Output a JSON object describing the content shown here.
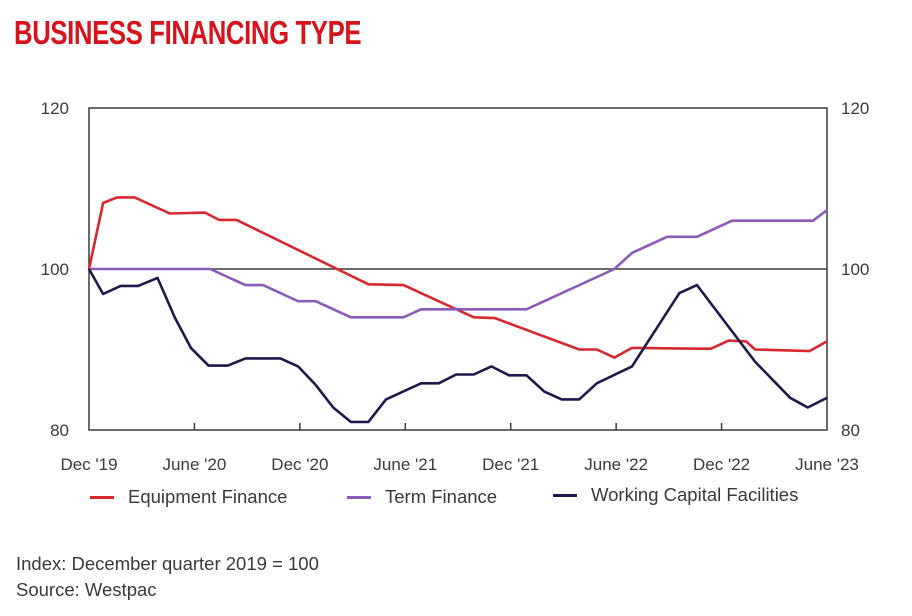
{
  "title": "BUSINESS FINANCING TYPE",
  "footnote": "Index: December quarter 2019 = 100",
  "source": "Source: Westpac",
  "legend": [
    {
      "label": "Equipment Finance",
      "color": "#d7282f"
    },
    {
      "label": "Term Finance",
      "color": "#8a5cb8"
    },
    {
      "label": "Working Capital Facilities",
      "color": "#1c1a4a"
    }
  ],
  "chart_data": {
    "type": "line",
    "title": "BUSINESS FINANCING TYPE",
    "xlabel": "",
    "ylabel": "",
    "ylim": [
      80,
      120
    ],
    "yticks": [
      80,
      100,
      120
    ],
    "reference_line": 100,
    "grid": false,
    "legend_position": "bottom",
    "x_tick_labels": [
      "Dec '19",
      "June '20",
      "Dec '20",
      "June '21",
      "Dec '21",
      "June '22",
      "Dec '22",
      "June '23"
    ],
    "x_range": [
      0,
      42
    ],
    "series": [
      {
        "name": "Equipment Finance",
        "color": "#d7282f",
        "points": [
          [
            0,
            100
          ],
          [
            0.8,
            108.2
          ],
          [
            1.6,
            108.9
          ],
          [
            2.6,
            108.9
          ],
          [
            4.6,
            106.9
          ],
          [
            6.6,
            107
          ],
          [
            7.4,
            106.1
          ],
          [
            8.4,
            106.1
          ],
          [
            15.9,
            98.1
          ],
          [
            17.9,
            98
          ],
          [
            21.9,
            94
          ],
          [
            23.1,
            93.9
          ],
          [
            27.9,
            90
          ],
          [
            28.9,
            90
          ],
          [
            29.9,
            89
          ],
          [
            30.9,
            90.2
          ],
          [
            34.6,
            90.1
          ],
          [
            35.4,
            90.1
          ],
          [
            36.4,
            91.1
          ],
          [
            37.4,
            91
          ],
          [
            37.9,
            90
          ],
          [
            41,
            89.8
          ],
          [
            42,
            91
          ]
        ]
      },
      {
        "name": "Term Finance",
        "color": "#8a5cb8",
        "points": [
          [
            0,
            100
          ],
          [
            6.9,
            100
          ],
          [
            8.9,
            98
          ],
          [
            9.9,
            98
          ],
          [
            11.9,
            96
          ],
          [
            12.9,
            96
          ],
          [
            14.9,
            94
          ],
          [
            17.9,
            94
          ],
          [
            18.9,
            95
          ],
          [
            24.9,
            95
          ],
          [
            29.9,
            100
          ],
          [
            30.9,
            102
          ],
          [
            32.9,
            104
          ],
          [
            34.6,
            104
          ],
          [
            36.6,
            106
          ],
          [
            41.2,
            106
          ],
          [
            42,
            107.3
          ]
        ]
      },
      {
        "name": "Working Capital Facilities",
        "color": "#1c1a4a",
        "points": [
          [
            0,
            100
          ],
          [
            0.8,
            96.9
          ],
          [
            1.8,
            97.9
          ],
          [
            2.8,
            97.9
          ],
          [
            3.9,
            98.9
          ],
          [
            4.9,
            93.9
          ],
          [
            5.8,
            90.2
          ],
          [
            6.8,
            88
          ],
          [
            7.9,
            88
          ],
          [
            8.9,
            88.9
          ],
          [
            10.9,
            88.9
          ],
          [
            11.9,
            87.9
          ],
          [
            12.9,
            85.6
          ],
          [
            13.9,
            82.8
          ],
          [
            14.9,
            81
          ],
          [
            15.9,
            81
          ],
          [
            16.9,
            83.8
          ],
          [
            18.9,
            85.8
          ],
          [
            19.9,
            85.8
          ],
          [
            20.9,
            86.9
          ],
          [
            21.9,
            86.9
          ],
          [
            22.9,
            87.9
          ],
          [
            23.9,
            86.8
          ],
          [
            24.9,
            86.8
          ],
          [
            25.9,
            84.8
          ],
          [
            26.9,
            83.8
          ],
          [
            27.9,
            83.8
          ],
          [
            28.9,
            85.8
          ],
          [
            30.9,
            87.9
          ],
          [
            33.6,
            97
          ],
          [
            34.6,
            98
          ],
          [
            37.9,
            88.5
          ],
          [
            39.9,
            84
          ],
          [
            40.9,
            82.8
          ],
          [
            42,
            84
          ]
        ]
      }
    ]
  }
}
